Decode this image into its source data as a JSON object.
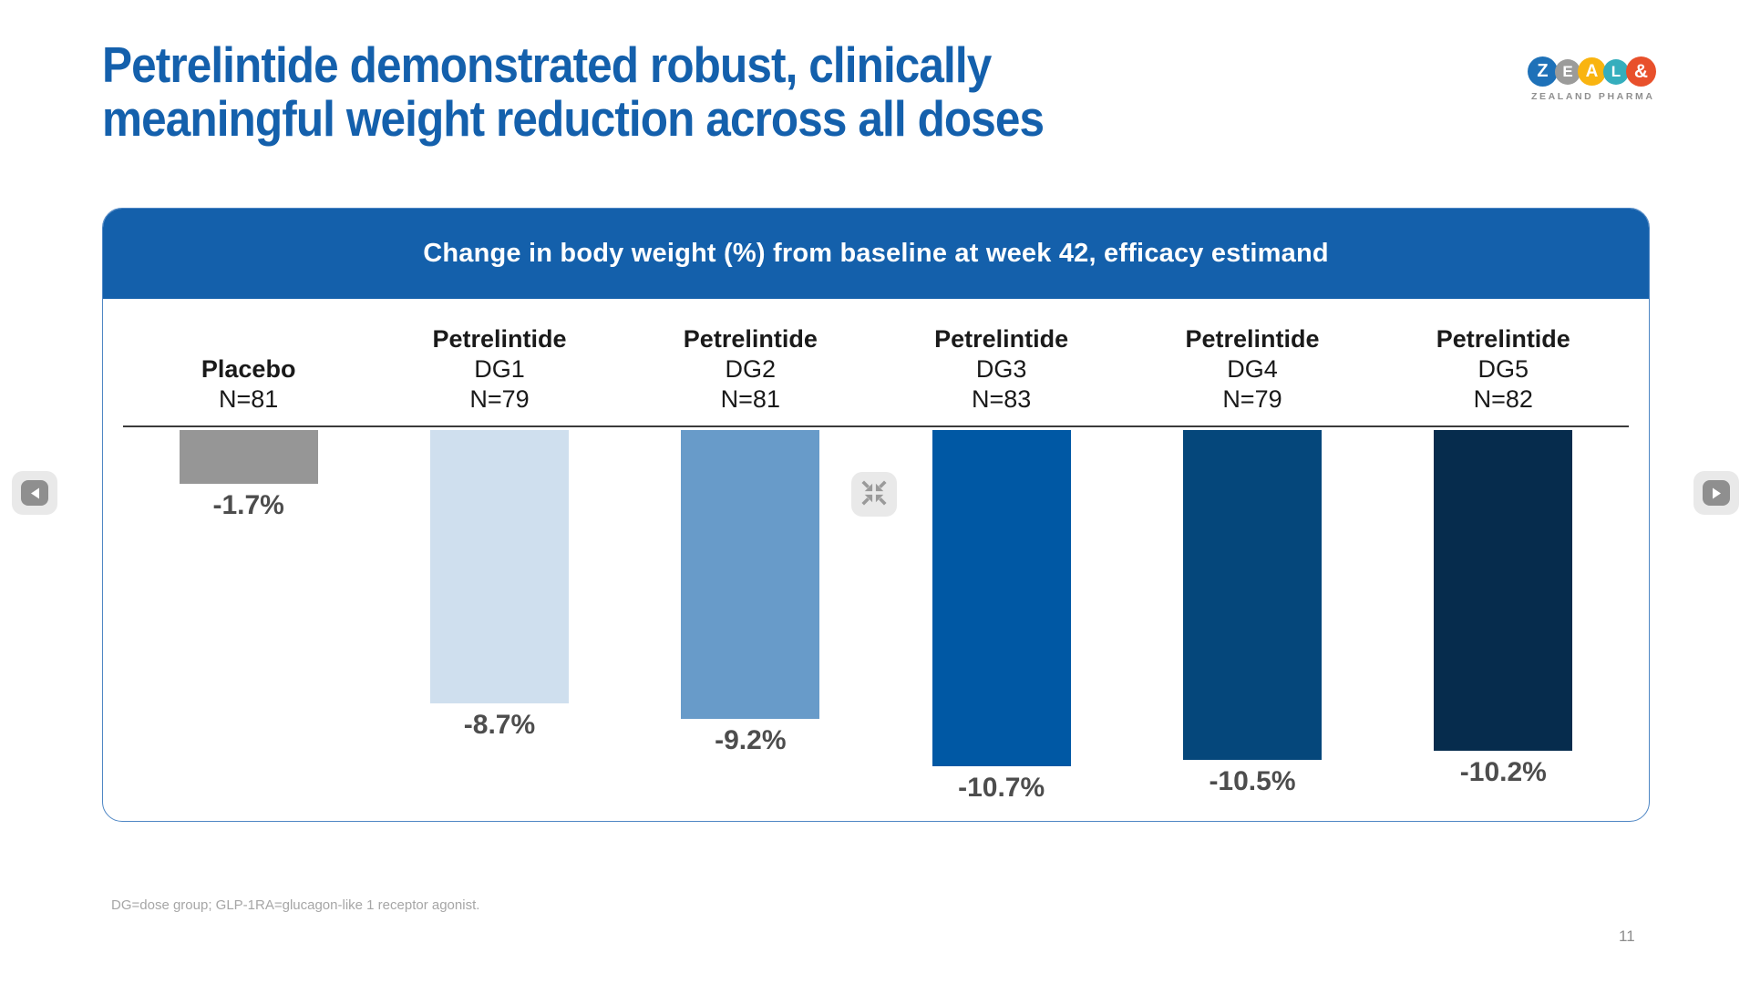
{
  "slide": {
    "title_line1": "Petrelintide demonstrated robust, clinically",
    "title_line2": "meaningful weight reduction across all doses",
    "title_color": "#1460AC",
    "footnote": "DG=dose group; GLP-1RA=glucagon-like 1 receptor agonist.",
    "page_number": "11"
  },
  "logo": {
    "circles": [
      {
        "letter": "Z",
        "color": "#1E71B8",
        "size": 33,
        "font": 20
      },
      {
        "letter": "E",
        "color": "#9B9B9A",
        "size": 28,
        "font": 17
      },
      {
        "letter": "A",
        "color": "#F9B410",
        "size": 31,
        "font": 19
      },
      {
        "letter": "L",
        "color": "#35AEBD",
        "size": 28,
        "font": 17
      },
      {
        "letter": "&",
        "color": "#E8502B",
        "size": 33,
        "font": 21
      }
    ],
    "company": "ZEALAND PHARMA"
  },
  "panel": {
    "header": "Change in body weight (%) from baseline at week 42, efficacy estimand",
    "header_bg": "#1460AB"
  },
  "chart_data": {
    "type": "bar",
    "title": "Change in body weight (%) from baseline at week 42, efficacy estimand",
    "ylabel": "Change in body weight (%)",
    "baseline": 0,
    "orientation": "vertical-negative",
    "groups": [
      {
        "treatment": "",
        "dose": "Placebo",
        "n": "N=81",
        "value": -1.7,
        "value_label": "-1.7%",
        "color": "#969696"
      },
      {
        "treatment": "Petrelintide",
        "dose": "DG1",
        "n": "N=79",
        "value": -8.7,
        "value_label": "-8.7%",
        "color": "#CFDFEE"
      },
      {
        "treatment": "Petrelintide",
        "dose": "DG2",
        "n": "N=81",
        "value": -9.2,
        "value_label": "-9.2%",
        "color": "#689BC9"
      },
      {
        "treatment": "Petrelintide",
        "dose": "DG3",
        "n": "N=83",
        "value": -10.7,
        "value_label": "-10.7%",
        "color": "#0058A4"
      },
      {
        "treatment": "Petrelintide",
        "dose": "DG4",
        "n": "N=79",
        "value": -10.5,
        "value_label": "-10.5%",
        "color": "#05477B"
      },
      {
        "treatment": "Petrelintide",
        "dose": "DG5",
        "n": "N=82",
        "value": -10.2,
        "value_label": "-10.2%",
        "color": "#062C4D"
      }
    ]
  },
  "viewer": {
    "icons": [
      "chevron-left-icon",
      "compress-icon",
      "chevron-right-icon"
    ]
  }
}
